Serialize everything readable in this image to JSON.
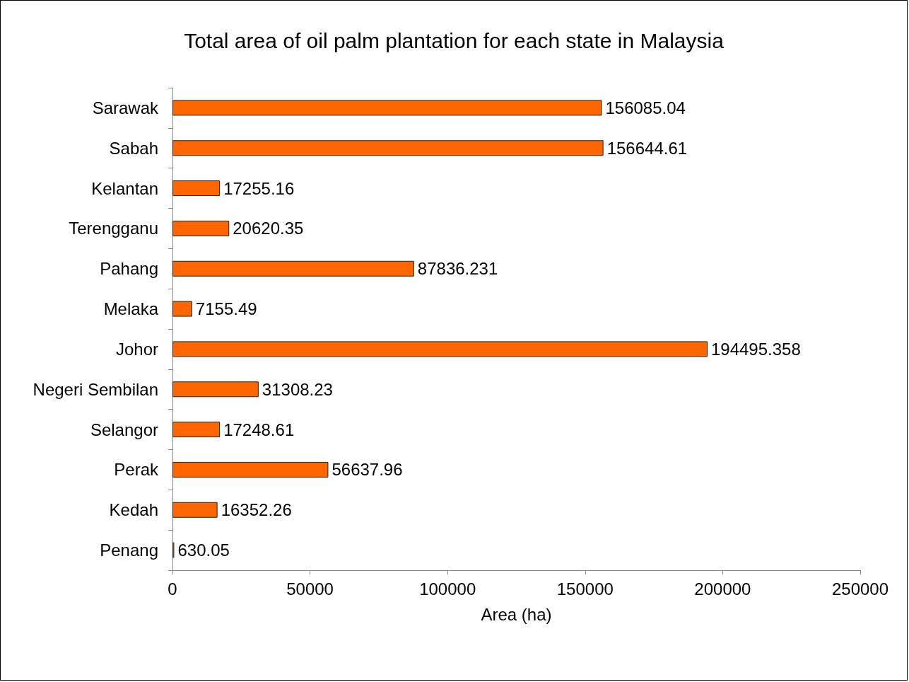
{
  "chart_data": {
    "type": "bar",
    "orientation": "horizontal",
    "title": "Total area of oil palm plantation for each state in Malaysia",
    "xlabel": "Area (ha)",
    "categories": [
      "Sarawak",
      "Sabah",
      "Kelantan",
      "Terengganu",
      "Pahang",
      "Melaka",
      "Johor",
      "Negeri Sembilan",
      "Selangor",
      "Perak",
      "Kedah",
      "Penang"
    ],
    "values": [
      156085.04,
      156644.61,
      17255.16,
      20620.35,
      87836.231,
      7155.49,
      194495.358,
      31308.23,
      17248.61,
      56637.96,
      16352.26,
      630.05
    ],
    "color": "#ff6600",
    "xlim": [
      0,
      250000
    ],
    "xticks": [
      0,
      50000,
      100000,
      150000,
      200000,
      250000
    ],
    "data_labels": true,
    "grid": false
  }
}
